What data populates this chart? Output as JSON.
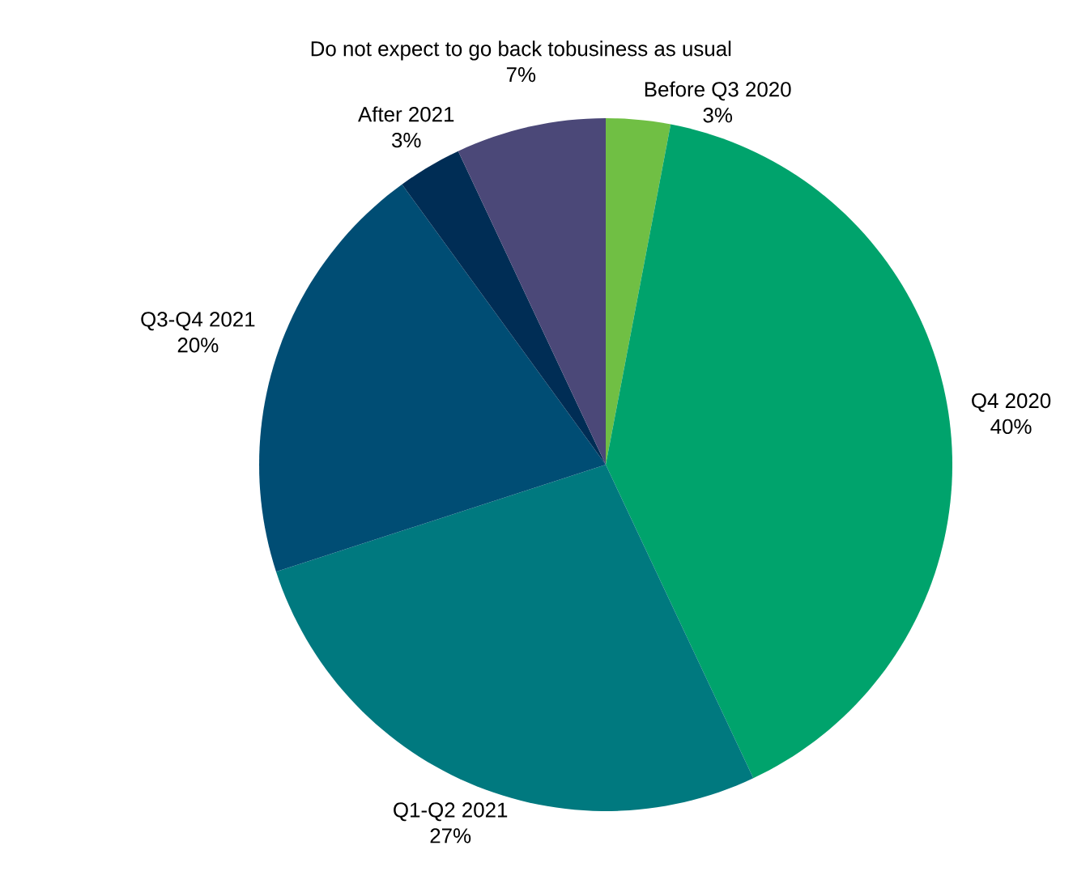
{
  "chart_data": {
    "type": "pie",
    "categories": [
      "Before Q3 2020",
      "Q4 2020",
      "Q1-Q2 2021",
      "Q3-Q4 2021",
      "After 2021",
      "Do not expect to go back tobusiness as usual"
    ],
    "values": [
      3,
      40,
      27,
      20,
      3,
      7
    ],
    "value_labels": [
      "3%",
      "40%",
      "27%",
      "20%",
      "3%",
      "7%"
    ],
    "colors": [
      "#70bf44",
      "#00a36c",
      "#00797f",
      "#004d74",
      "#002d55",
      "#4b4878"
    ]
  }
}
